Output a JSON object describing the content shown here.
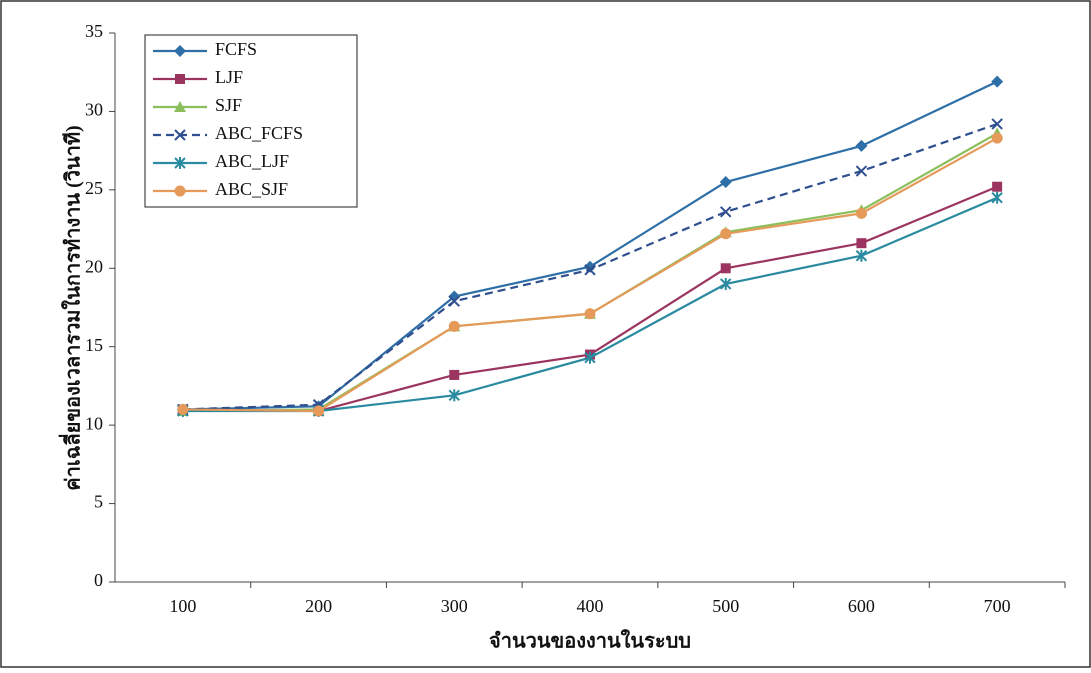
{
  "chart_data": {
    "type": "line",
    "x_label": "จำนวนของงานในระบบ",
    "y_label": "ค่าเฉลี่ยของเวลารวมในการทำงาน (วินาที)",
    "categories": [
      "100",
      "200",
      "300",
      "400",
      "500",
      "600",
      "700"
    ],
    "ylim": [
      0,
      35
    ],
    "yticks": [
      0,
      5,
      10,
      15,
      20,
      25,
      30,
      35
    ],
    "legend": "top-left",
    "series": [
      {
        "name": "FCFS",
        "color": "#2e6fa7",
        "marker": "diamond",
        "values": [
          11.0,
          11.2,
          18.2,
          20.1,
          25.5,
          27.8,
          31.9
        ]
      },
      {
        "name": "LJF",
        "color": "#9b3560",
        "marker": "square",
        "values": [
          11.0,
          10.9,
          13.2,
          14.5,
          20.0,
          21.6,
          25.2
        ]
      },
      {
        "name": "SJF",
        "color": "#8cbf5c",
        "marker": "triangle",
        "values": [
          10.9,
          11.0,
          16.3,
          17.1,
          22.3,
          23.7,
          28.6
        ]
      },
      {
        "name": "ABC_FCFS",
        "color": "#2f4f8f",
        "marker": "x",
        "dashed": true,
        "values": [
          11.0,
          11.3,
          17.9,
          19.9,
          23.6,
          26.2,
          29.2
        ]
      },
      {
        "name": "ABC_LJF",
        "color": "#2a8aa0",
        "marker": "star",
        "values": [
          10.9,
          10.9,
          11.9,
          14.3,
          19.0,
          20.8,
          24.5
        ]
      },
      {
        "name": "ABC_SJF",
        "color": "#e59a5a",
        "marker": "circle",
        "values": [
          11.0,
          10.9,
          16.3,
          17.1,
          22.2,
          23.5,
          28.3
        ]
      }
    ]
  }
}
